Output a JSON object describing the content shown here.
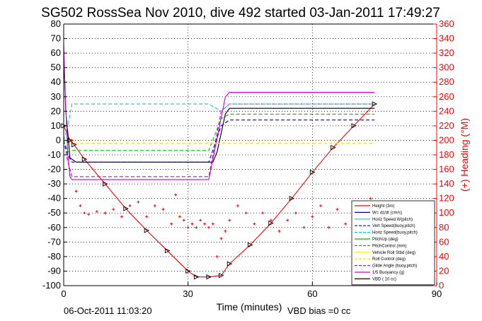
{
  "title": "SG502 RossSea Nov 2010, dive 492 started 03-Jan-2011 17:49:27",
  "footer": {
    "timestamp": "06-Oct-2011 11:03:20",
    "vbd_bias": "VBD bias =0 cc"
  },
  "colors": {
    "right_axis": "#ff0000",
    "grid": "#000000"
  },
  "chart_data": {
    "type": "line",
    "title": "SG502 RossSea Nov 2010, dive 492 started 03-Jan-2011 17:49:27",
    "xlabel": "Time (minutes)",
    "ylabel": "",
    "y2label": "(+) Heading (°M)",
    "xlim": [
      0,
      90
    ],
    "ylim": [
      -100,
      80
    ],
    "y2lim": [
      0,
      360
    ],
    "xticks": [
      0,
      30,
      60,
      90
    ],
    "yticks": [
      -100,
      -90,
      -80,
      -70,
      -60,
      -50,
      -40,
      -30,
      -20,
      -10,
      0,
      10,
      20,
      30,
      40,
      50,
      60,
      70,
      80
    ],
    "y2ticks": [
      0,
      20,
      40,
      60,
      80,
      100,
      120,
      140,
      160,
      180,
      200,
      220,
      240,
      260,
      280,
      300,
      320,
      340,
      360
    ],
    "grid": true,
    "legend_position": "bottom-right",
    "legend": [
      {
        "label": "Height (3m)",
        "color": "#ff0000",
        "dash": "solid"
      },
      {
        "label": "W= dz/dt (cm/s)",
        "color": "#0000aa",
        "dash": "solid"
      },
      {
        "label": "Horiz Speed W(pitch)",
        "color": "#00cccc",
        "dash": "solid"
      },
      {
        "label": "Vert Speed(buoy,pitch)",
        "color": "#0000ff",
        "dash": "dash"
      },
      {
        "label": "Horiz Speed(buoy,pitch)",
        "color": "#00cccc",
        "dash": "dash"
      },
      {
        "label": "PitchUp (deg)",
        "color": "#00bb00",
        "dash": "solid"
      },
      {
        "label": "PitchControl (mm)",
        "color": "#00bb00",
        "dash": "dash"
      },
      {
        "label": "Vehicle Roll Stbd (deg)",
        "color": "#eeee00",
        "dash": "solid"
      },
      {
        "label": "Roll Control (deg)",
        "color": "#eeee00",
        "dash": "dash"
      },
      {
        "label": "Glide Angle (buoy,pitch)",
        "color": "#cc00cc",
        "dash": "dash"
      },
      {
        "label": "1/5 Buoyancy (g)",
        "color": "#cc00cc",
        "dash": "solid"
      },
      {
        "label": "VBD ( 10 cc)",
        "color": "#000000",
        "dash": "solid"
      }
    ],
    "series": [
      {
        "name": "Height (3m)",
        "color": "#ff0000",
        "style": "line-markers",
        "x": [
          0,
          1.5,
          2.5,
          5,
          10,
          15,
          20,
          25,
          30,
          32,
          35,
          38,
          40,
          45,
          50,
          55,
          60,
          65,
          70,
          75
        ],
        "y": [
          10,
          0,
          -3,
          -13,
          -30,
          -47,
          -62,
          -76,
          -90,
          -94,
          -94,
          -93,
          -85,
          -72,
          -57,
          -40,
          -22,
          -5,
          10,
          25
        ]
      },
      {
        "name": "VBD ( 10 cc)",
        "color": "#000000",
        "style": "line",
        "x": [
          0,
          0.5,
          1,
          1.5,
          3,
          36,
          37,
          39,
          40,
          75
        ],
        "y": [
          60,
          20,
          5,
          -12,
          -15,
          -15,
          -8,
          18,
          22,
          22
        ]
      },
      {
        "name": "1/5 Buoyancy (g)",
        "color": "#cc00cc",
        "style": "line",
        "x": [
          0,
          0.4,
          1,
          1.5,
          2,
          35,
          35.5,
          39,
          40,
          75
        ],
        "y": [
          65,
          30,
          -10,
          -25,
          -27,
          -27,
          -20,
          30,
          33,
          33
        ]
      },
      {
        "name": "Glide Angle (buoy,pitch)",
        "color": "#cc00cc",
        "style": "dash",
        "x": [
          0,
          1,
          2,
          35,
          38,
          40,
          75
        ],
        "y": [
          0,
          -15,
          -25,
          -25,
          20,
          25,
          25
        ]
      },
      {
        "name": "Horiz Speed(buoy,pitch)",
        "color": "#00cccc",
        "style": "dash",
        "x": [
          0,
          1,
          2,
          35,
          38,
          40,
          75
        ],
        "y": [
          0,
          10,
          25,
          25,
          20,
          25,
          25
        ]
      },
      {
        "name": "Vert Speed(buoy,pitch)",
        "color": "#0000ff",
        "style": "dash",
        "x": [
          0,
          1,
          2,
          35,
          38,
          40,
          75
        ],
        "y": [
          0,
          -10,
          -15,
          -15,
          10,
          14,
          14
        ]
      },
      {
        "name": "PitchControl (mm)",
        "color": "#00bb00",
        "style": "dash",
        "x": [
          0,
          1,
          2,
          35,
          38,
          40,
          75
        ],
        "y": [
          0,
          -8,
          -7,
          -7,
          15,
          18,
          18
        ]
      },
      {
        "name": "Roll Control (deg)",
        "color": "#eeee00",
        "style": "dash",
        "x": [
          0,
          2,
          75
        ],
        "y": [
          0,
          -2,
          -2
        ]
      }
    ],
    "heading_points_note": "red '+' markers on the right (Heading) axis",
    "heading": {
      "x": [
        2,
        3,
        4,
        5,
        6,
        8,
        10,
        12,
        14,
        16,
        18,
        20,
        22,
        24,
        26,
        27,
        28,
        29,
        30,
        31,
        32,
        33,
        34,
        35,
        36,
        37,
        38,
        39,
        40,
        42,
        44,
        46,
        48,
        50,
        52,
        54,
        56,
        58,
        60,
        62,
        64,
        66,
        68,
        70,
        72,
        74
      ],
      "y": [
        200,
        130,
        110,
        100,
        98,
        102,
        100,
        105,
        95,
        110,
        115,
        95,
        110,
        105,
        85,
        125,
        95,
        90,
        80,
        85,
        80,
        90,
        85,
        80,
        85,
        40,
        65,
        75,
        90,
        110,
        100,
        85,
        100,
        90,
        75,
        90,
        100,
        80,
        95,
        110,
        80,
        105,
        85,
        110,
        95,
        120
      ]
    }
  }
}
